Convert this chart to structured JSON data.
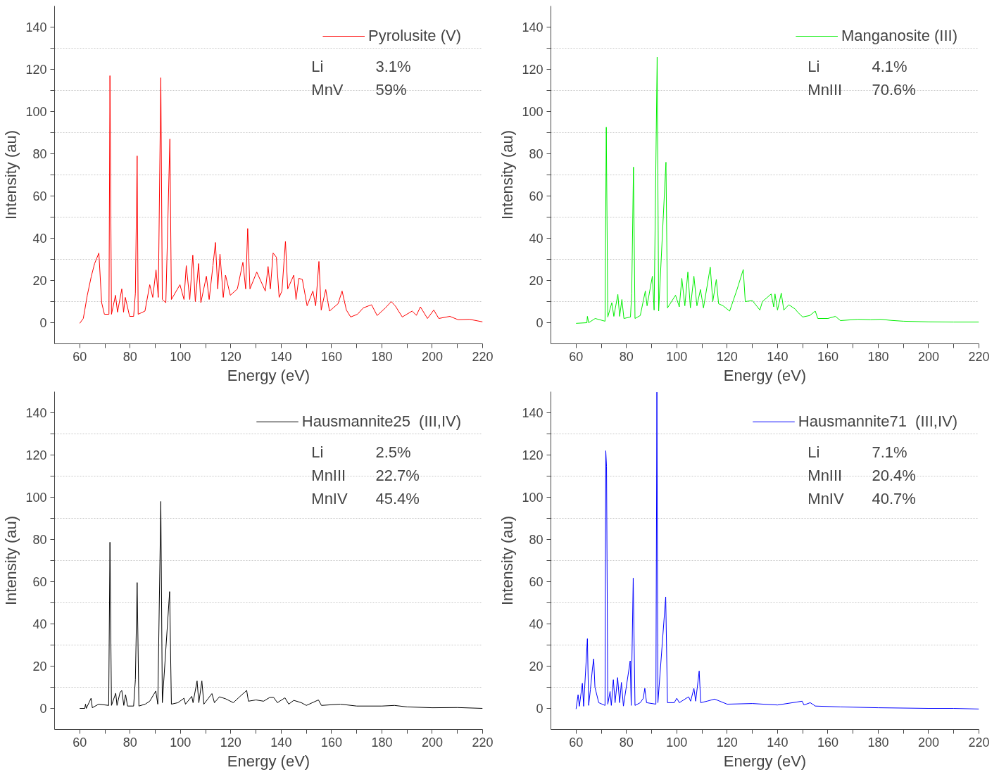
{
  "chart_data": [
    {
      "type": "line",
      "xlabel": "Energy (eV)",
      "ylabel": "Intensity (au)",
      "xlim": [
        50,
        220
      ],
      "ylim": [
        -10,
        150
      ],
      "xticks": [
        60,
        {
          "value": 70,
          "label": null
        },
        80,
        {
          "value": 90,
          "label": null
        },
        100,
        {
          "value": 110,
          "label": null
        },
        120,
        {
          "value": 130,
          "label": null
        },
        140,
        {
          "value": 150,
          "label": null
        },
        160,
        {
          "value": 170,
          "label": null
        },
        180,
        {
          "value": 190,
          "label": null
        },
        200,
        {
          "value": 210,
          "label": null
        },
        220
      ],
      "yticks": [
        0,
        {
          "value": 10,
          "label": null
        },
        20,
        {
          "value": 30,
          "label": null
        },
        40,
        {
          "value": 50,
          "label": null
        },
        60,
        {
          "value": 70,
          "label": null
        },
        80,
        {
          "value": 90,
          "label": null
        },
        100,
        {
          "value": 110,
          "label": null
        },
        120,
        {
          "value": 130,
          "label": null
        },
        140
      ],
      "grid": "y",
      "legend": "top right",
      "annotations": [
        "Li",
        "3.1%",
        "MnV",
        "59%"
      ],
      "series": [
        {
          "name": "Pyrolusite (V)",
          "color": "#ff0000",
          "x": [
            60,
            61.4,
            62,
            63,
            64.6,
            65.9,
            67.6,
            68.7,
            69.8,
            71.6,
            72,
            72.6,
            74.2,
            75,
            76.7,
            77.4,
            78.1,
            79.8,
            81.4,
            82.1,
            82.8,
            83.2,
            85.9,
            87.8,
            89,
            90.3,
            91.2,
            92.2,
            92.8,
            94.2,
            95.8,
            96.4,
            99.8,
            101.4,
            102.3,
            103.7,
            104.9,
            105.9,
            107.2,
            108.1,
            110.3,
            111.4,
            112.9,
            113.9,
            114.8,
            115.7,
            117,
            117.9,
            119.8,
            122.6,
            124.8,
            125.9,
            126.7,
            127.6,
            130.3,
            133.7,
            134.8,
            135.7,
            136.8,
            138.1,
            139.2,
            140.3,
            141.7,
            142.6,
            145,
            145.9,
            147,
            148.4,
            150.3,
            152.6,
            153.7,
            155,
            155.9,
            157.7,
            159.2,
            162.6,
            164.2,
            165.9,
            167.6,
            170.3,
            172.6,
            175.9,
            178.1,
            181.4,
            183.7,
            185.3,
            188.1,
            192,
            193.7,
            195.3,
            198.1,
            200.6,
            202.6,
            207,
            210.3,
            214.8,
            220
          ],
          "values": [
            -0.3,
            2,
            6,
            13,
            22,
            28,
            33,
            9.5,
            4,
            4,
            117,
            4,
            13,
            5,
            16,
            5,
            12,
            3,
            3,
            14,
            79,
            4,
            5.5,
            18,
            12,
            25,
            12,
            116,
            11,
            9.5,
            87,
            11,
            18,
            11,
            27,
            11,
            32,
            10,
            28,
            9.5,
            22,
            11,
            27,
            38,
            16,
            32.5,
            12,
            22.5,
            13,
            16,
            28.6,
            16,
            44.6,
            16,
            24,
            15,
            26.6,
            16,
            33,
            31,
            12,
            15,
            38.5,
            16,
            22.5,
            11,
            21,
            20.5,
            8,
            15,
            8,
            29,
            6,
            15.7,
            5.5,
            9,
            15,
            6,
            2.7,
            4,
            7,
            8.5,
            3.4,
            7,
            10,
            8,
            2.7,
            5.5,
            3.5,
            7.5,
            2,
            6,
            2,
            3,
            1.4,
            1.6,
            0.4
          ]
        }
      ]
    },
    {
      "type": "line",
      "xlabel": "Energy (eV)",
      "ylabel": "Intensity (au)",
      "xlim": [
        50,
        220
      ],
      "ylim": [
        -10,
        150
      ],
      "xticks": [
        60,
        {
          "value": 70,
          "label": null
        },
        80,
        {
          "value": 90,
          "label": null
        },
        100,
        {
          "value": 110,
          "label": null
        },
        120,
        {
          "value": 130,
          "label": null
        },
        140,
        {
          "value": 150,
          "label": null
        },
        160,
        {
          "value": 170,
          "label": null
        },
        180,
        {
          "value": 190,
          "label": null
        },
        200,
        {
          "value": 210,
          "label": null
        },
        220
      ],
      "yticks": [
        0,
        {
          "value": 10,
          "label": null
        },
        20,
        {
          "value": 30,
          "label": null
        },
        40,
        {
          "value": 50,
          "label": null
        },
        60,
        {
          "value": 70,
          "label": null
        },
        80,
        {
          "value": 90,
          "label": null
        },
        100,
        {
          "value": 110,
          "label": null
        },
        120,
        {
          "value": 130,
          "label": null
        },
        140
      ],
      "grid": "y",
      "legend": "top right",
      "annotations": [
        "Li",
        "4.1%",
        "MnIII",
        "70.6%"
      ],
      "series": [
        {
          "name": "Manganosite (III)",
          "color": "#00ee00",
          "x": [
            60,
            64.3,
            64.5,
            65,
            67.6,
            71.5,
            72,
            72.6,
            74.2,
            75,
            76.6,
            77.3,
            78.2,
            79,
            81.6,
            82.1,
            82.8,
            83.4,
            85.5,
            87.5,
            88.2,
            90.3,
            91,
            92.2,
            92.8,
            95.7,
            96.3,
            99.5,
            101,
            102,
            103.2,
            104.4,
            105.4,
            106.8,
            108,
            109.4,
            110.6,
            113.3,
            114.3,
            115.7,
            116.6,
            118.4,
            121,
            124,
            126.4,
            127.2,
            130,
            133,
            134,
            137.5,
            138.5,
            139,
            140,
            141.5,
            142.5,
            144.5,
            147,
            148,
            150,
            152.8,
            155,
            156,
            160,
            163,
            165,
            172,
            177,
            181,
            185,
            190,
            200,
            210,
            220
          ],
          "values": [
            -0.3,
            0,
            3,
            0,
            2,
            0.7,
            92.6,
            2.7,
            9.5,
            3,
            13.4,
            3,
            11,
            2,
            2.7,
            14,
            73.7,
            2,
            3.4,
            15,
            8,
            22,
            6,
            125.8,
            5.5,
            76,
            7,
            13,
            7.5,
            21,
            8,
            24,
            7,
            22,
            8,
            15.7,
            7,
            26.3,
            10,
            20.5,
            9,
            8,
            5.5,
            16,
            25.2,
            10,
            10.5,
            6,
            10,
            13.6,
            7.5,
            13.6,
            6,
            14,
            6,
            8.5,
            6.5,
            5,
            2.7,
            3.4,
            5.5,
            2,
            2,
            3,
            1,
            1.6,
            1.4,
            1.6,
            1.1,
            0.7,
            0.4,
            0.3,
            0.3
          ]
        }
      ]
    },
    {
      "type": "line",
      "xlabel": "Energy (eV)",
      "ylabel": "Intensity (au)",
      "xlim": [
        50,
        220
      ],
      "ylim": [
        -10,
        150
      ],
      "xticks": [
        60,
        {
          "value": 70,
          "label": null
        },
        80,
        {
          "value": 90,
          "label": null
        },
        100,
        {
          "value": 110,
          "label": null
        },
        120,
        {
          "value": 130,
          "label": null
        },
        140,
        {
          "value": 150,
          "label": null
        },
        160,
        {
          "value": 170,
          "label": null
        },
        180,
        {
          "value": 190,
          "label": null
        },
        200,
        {
          "value": 210,
          "label": null
        },
        220
      ],
      "yticks": [
        0,
        {
          "value": 10,
          "label": null
        },
        20,
        {
          "value": 30,
          "label": null
        },
        40,
        {
          "value": 50,
          "label": null
        },
        60,
        {
          "value": 70,
          "label": null
        },
        80,
        {
          "value": 90,
          "label": null
        },
        100,
        {
          "value": 110,
          "label": null
        },
        120,
        {
          "value": 130,
          "label": null
        },
        140
      ],
      "grid": "y",
      "legend": "top right",
      "annotations": [
        "Li",
        "2.5%",
        "MnIII",
        "22.7%",
        "MnIV",
        "45.4%"
      ],
      "series": [
        {
          "name": "Hausmannite25  (III,IV)",
          "color": "#000000",
          "x": [
            60,
            62,
            62.3,
            62.6,
            64.5,
            65,
            67.5,
            71.5,
            72,
            72.6,
            74.3,
            74.8,
            76,
            76.7,
            77.5,
            78.2,
            79,
            81.4,
            82.1,
            82.8,
            83.5,
            86,
            87.8,
            90.2,
            91,
            92.2,
            92.8,
            95.7,
            96.4,
            99,
            101.4,
            102,
            104.5,
            105,
            106.6,
            107.3,
            108.5,
            109.3,
            112.5,
            113.5,
            115.5,
            118,
            121,
            123.5,
            126.3,
            127,
            130,
            133,
            135.5,
            137,
            138.5,
            141.5,
            143,
            145,
            148,
            150,
            154.8,
            156,
            163.5,
            170,
            180,
            185,
            190,
            200,
            210,
            220
          ],
          "values": [
            0,
            0,
            2,
            0,
            4.8,
            0.3,
            2,
            1.4,
            78.7,
            1.4,
            7.2,
            1.4,
            7.5,
            8.5,
            1.4,
            6.5,
            1.1,
            1.1,
            13.6,
            59.6,
            1.1,
            2,
            3.4,
            8.2,
            2,
            98,
            2.7,
            55.3,
            2,
            2.7,
            4.8,
            2,
            5.7,
            2.7,
            13,
            2.7,
            13,
            2,
            7,
            2.7,
            5.5,
            4.5,
            2.7,
            5.5,
            8.5,
            3.4,
            4,
            3.4,
            5.2,
            5.2,
            2.7,
            5,
            2,
            3.8,
            2.7,
            1.4,
            4,
            1.4,
            2,
            1.1,
            1.1,
            1.4,
            0.7,
            0.3,
            0.4,
            0
          ]
        }
      ]
    },
    {
      "type": "line",
      "xlabel": "Energy (eV)",
      "ylabel": "Intensity (au)",
      "xlim": [
        50,
        220
      ],
      "ylim": [
        -10,
        150
      ],
      "xticks": [
        60,
        {
          "value": 70,
          "label": null
        },
        80,
        {
          "value": 90,
          "label": null
        },
        100,
        {
          "value": 110,
          "label": null
        },
        120,
        {
          "value": 130,
          "label": null
        },
        140,
        {
          "value": 150,
          "label": null
        },
        160,
        {
          "value": 170,
          "label": null
        },
        180,
        {
          "value": 190,
          "label": null
        },
        200,
        {
          "value": 210,
          "label": null
        },
        220
      ],
      "yticks": [
        0,
        {
          "value": 10,
          "label": null
        },
        20,
        {
          "value": 30,
          "label": null
        },
        40,
        {
          "value": 50,
          "label": null
        },
        60,
        {
          "value": 70,
          "label": null
        },
        80,
        {
          "value": 90,
          "label": null
        },
        100,
        {
          "value": 110,
          "label": null
        },
        120,
        {
          "value": 130,
          "label": null
        },
        140
      ],
      "grid": "y",
      "legend": "top right",
      "annotations": [
        "Li",
        "7.1%",
        "MnIII",
        "20.4%",
        "MnIV",
        "40.7%"
      ],
      "series": [
        {
          "name": "Hausmannite71  (III,IV)",
          "color": "#0000ff",
          "x": [
            60,
            60.8,
            61.3,
            62.5,
            63,
            64.5,
            65,
            65.7,
            66.5,
            67,
            67.5,
            69,
            71.5,
            71.8,
            72.1,
            72.6,
            73.5,
            74,
            74.8,
            75.5,
            76.5,
            77.3,
            78,
            78.8,
            81.5,
            81.9,
            82.7,
            83.4,
            85.5,
            86.7,
            87.3,
            88,
            91.7,
            92.1,
            92.5,
            95.6,
            96.3,
            99,
            100,
            101,
            104.7,
            105.5,
            106.8,
            107.5,
            108.9,
            109.5,
            112,
            115,
            120,
            130,
            140,
            149.8,
            150.5,
            153,
            155,
            165,
            180,
            200,
            210,
            220
          ],
          "values": [
            -0.3,
            6.5,
            1,
            11.9,
            1,
            33,
            1.4,
            9,
            18.8,
            23.5,
            10,
            2.7,
            1.4,
            122,
            114.6,
            2,
            8,
            1.4,
            13.6,
            2.7,
            14.6,
            2.7,
            12.3,
            1.1,
            22.5,
            1.4,
            61.7,
            1.4,
            2.7,
            4.8,
            9.5,
            2.7,
            2,
            149.8,
            2.7,
            52.8,
            2.7,
            2.7,
            4.8,
            2.7,
            5.5,
            3.4,
            9.5,
            3.4,
            17.7,
            2.7,
            3.4,
            4.4,
            2,
            2.3,
            1.6,
            3.4,
            1.6,
            2.7,
            1.1,
            0.7,
            0.3,
            0,
            0,
            -0.3
          ]
        }
      ]
    }
  ]
}
